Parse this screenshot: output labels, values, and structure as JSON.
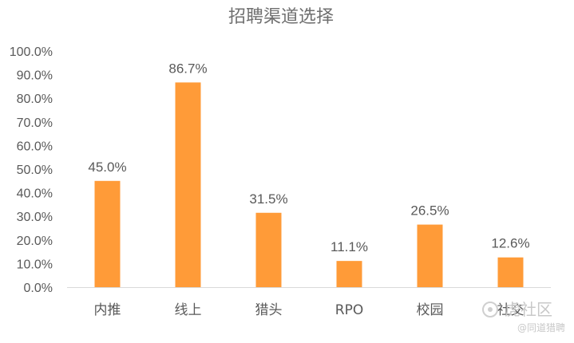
{
  "chart_data": {
    "type": "bar",
    "title": "招聘渠道选择",
    "categories": [
      "内推",
      "线上",
      "猎头",
      "RPO",
      "校园",
      "社交"
    ],
    "values": [
      45.0,
      86.7,
      31.5,
      11.1,
      26.5,
      12.6
    ],
    "value_labels": [
      "45.0%",
      "86.7%",
      "31.5%",
      "11.1%",
      "26.5%",
      "12.6%"
    ],
    "y_ticks": [
      "0.0%",
      "10.0%",
      "20.0%",
      "30.0%",
      "40.0%",
      "50.0%",
      "60.0%",
      "70.0%",
      "80.0%",
      "90.0%",
      "100.0%"
    ],
    "ylim": [
      0,
      100
    ],
    "xlabel": "",
    "ylabel": "",
    "grid": false,
    "legend": "none",
    "bar_color": "#FF9B38",
    "axis_color": "#d9d9d9",
    "text_color": "#595959"
  },
  "watermark": {
    "main": "虎社区",
    "sub": "@同道猎聘"
  }
}
